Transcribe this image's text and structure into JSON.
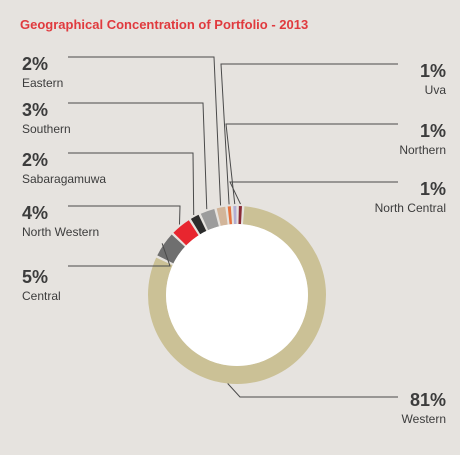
{
  "chart_data": {
    "type": "pie",
    "title": "Geographical Concentration of Portfolio - 2013",
    "unit": "%",
    "slices": [
      {
        "label": "Western",
        "value": 81,
        "display": "81%",
        "color": "#cbc196"
      },
      {
        "label": "Central",
        "value": 5,
        "display": "5%",
        "color": "#6f6f6f"
      },
      {
        "label": "North Western",
        "value": 4,
        "display": "4%",
        "color": "#e8262f"
      },
      {
        "label": "Sabaragamuwa",
        "value": 2,
        "display": "2%",
        "color": "#2b2b2b"
      },
      {
        "label": "Southern",
        "value": 3,
        "display": "3%",
        "color": "#9c9c9c"
      },
      {
        "label": "Eastern",
        "value": 2,
        "display": "2%",
        "color": "#d2b59a"
      },
      {
        "label": "Uva",
        "value": 1,
        "display": "1%",
        "color": "#e6723e"
      },
      {
        "label": "Northern",
        "value": 1,
        "display": "1%",
        "color": "#b3aed3"
      },
      {
        "label": "North Central",
        "value": 1,
        "display": "1%",
        "color": "#8a2a36"
      }
    ]
  }
}
